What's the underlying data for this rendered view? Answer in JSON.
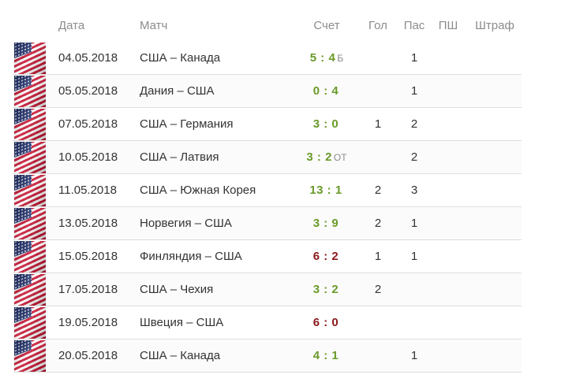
{
  "table": {
    "headers": {
      "date": "Дата",
      "match": "Матч",
      "score": "Счет",
      "goals": "Гол",
      "assists": "Пас",
      "pp": "ПШ",
      "pim": "Штраф"
    },
    "rows": [
      {
        "date": "04.05.2018",
        "match": "США – Канада",
        "score": "5 : 4",
        "suffix": "Б",
        "result": "win",
        "goals": "",
        "assists": "1",
        "pp": "",
        "pim": ""
      },
      {
        "date": "05.05.2018",
        "match": "Дания – США",
        "score": "0 : 4",
        "suffix": "",
        "result": "win",
        "goals": "",
        "assists": "1",
        "pp": "",
        "pim": ""
      },
      {
        "date": "07.05.2018",
        "match": "США – Германия",
        "score": "3 : 0",
        "suffix": "",
        "result": "win",
        "goals": "1",
        "assists": "2",
        "pp": "",
        "pim": ""
      },
      {
        "date": "10.05.2018",
        "match": "США – Латвия",
        "score": "3 : 2",
        "suffix": "ОТ",
        "result": "win",
        "goals": "",
        "assists": "2",
        "pp": "",
        "pim": ""
      },
      {
        "date": "11.05.2018",
        "match": "США – Южная Корея",
        "score": "13 : 1",
        "suffix": "",
        "result": "win",
        "goals": "2",
        "assists": "3",
        "pp": "",
        "pim": ""
      },
      {
        "date": "13.05.2018",
        "match": "Норвегия – США",
        "score": "3 : 9",
        "suffix": "",
        "result": "win",
        "goals": "2",
        "assists": "1",
        "pp": "",
        "pim": ""
      },
      {
        "date": "15.05.2018",
        "match": "Финляндия – США",
        "score": "6 : 2",
        "suffix": "",
        "result": "loss",
        "goals": "1",
        "assists": "1",
        "pp": "",
        "pim": ""
      },
      {
        "date": "17.05.2018",
        "match": "США – Чехия",
        "score": "3 : 2",
        "suffix": "",
        "result": "win",
        "goals": "2",
        "assists": "",
        "pp": "",
        "pim": ""
      },
      {
        "date": "19.05.2018",
        "match": "Швеция – США",
        "score": "6 : 0",
        "suffix": "",
        "result": "loss",
        "goals": "",
        "assists": "",
        "pp": "",
        "pim": ""
      },
      {
        "date": "20.05.2018",
        "match": "США – Канада",
        "score": "4 : 1",
        "suffix": "",
        "result": "win",
        "goals": "",
        "assists": "1",
        "pp": "",
        "pim": ""
      }
    ]
  },
  "flag_icon": "usa-flag-icon",
  "colors": {
    "win": "#6a9a2a",
    "loss": "#8a1a1a",
    "header_text": "#8c8c8c",
    "row_border": "#dedede"
  }
}
